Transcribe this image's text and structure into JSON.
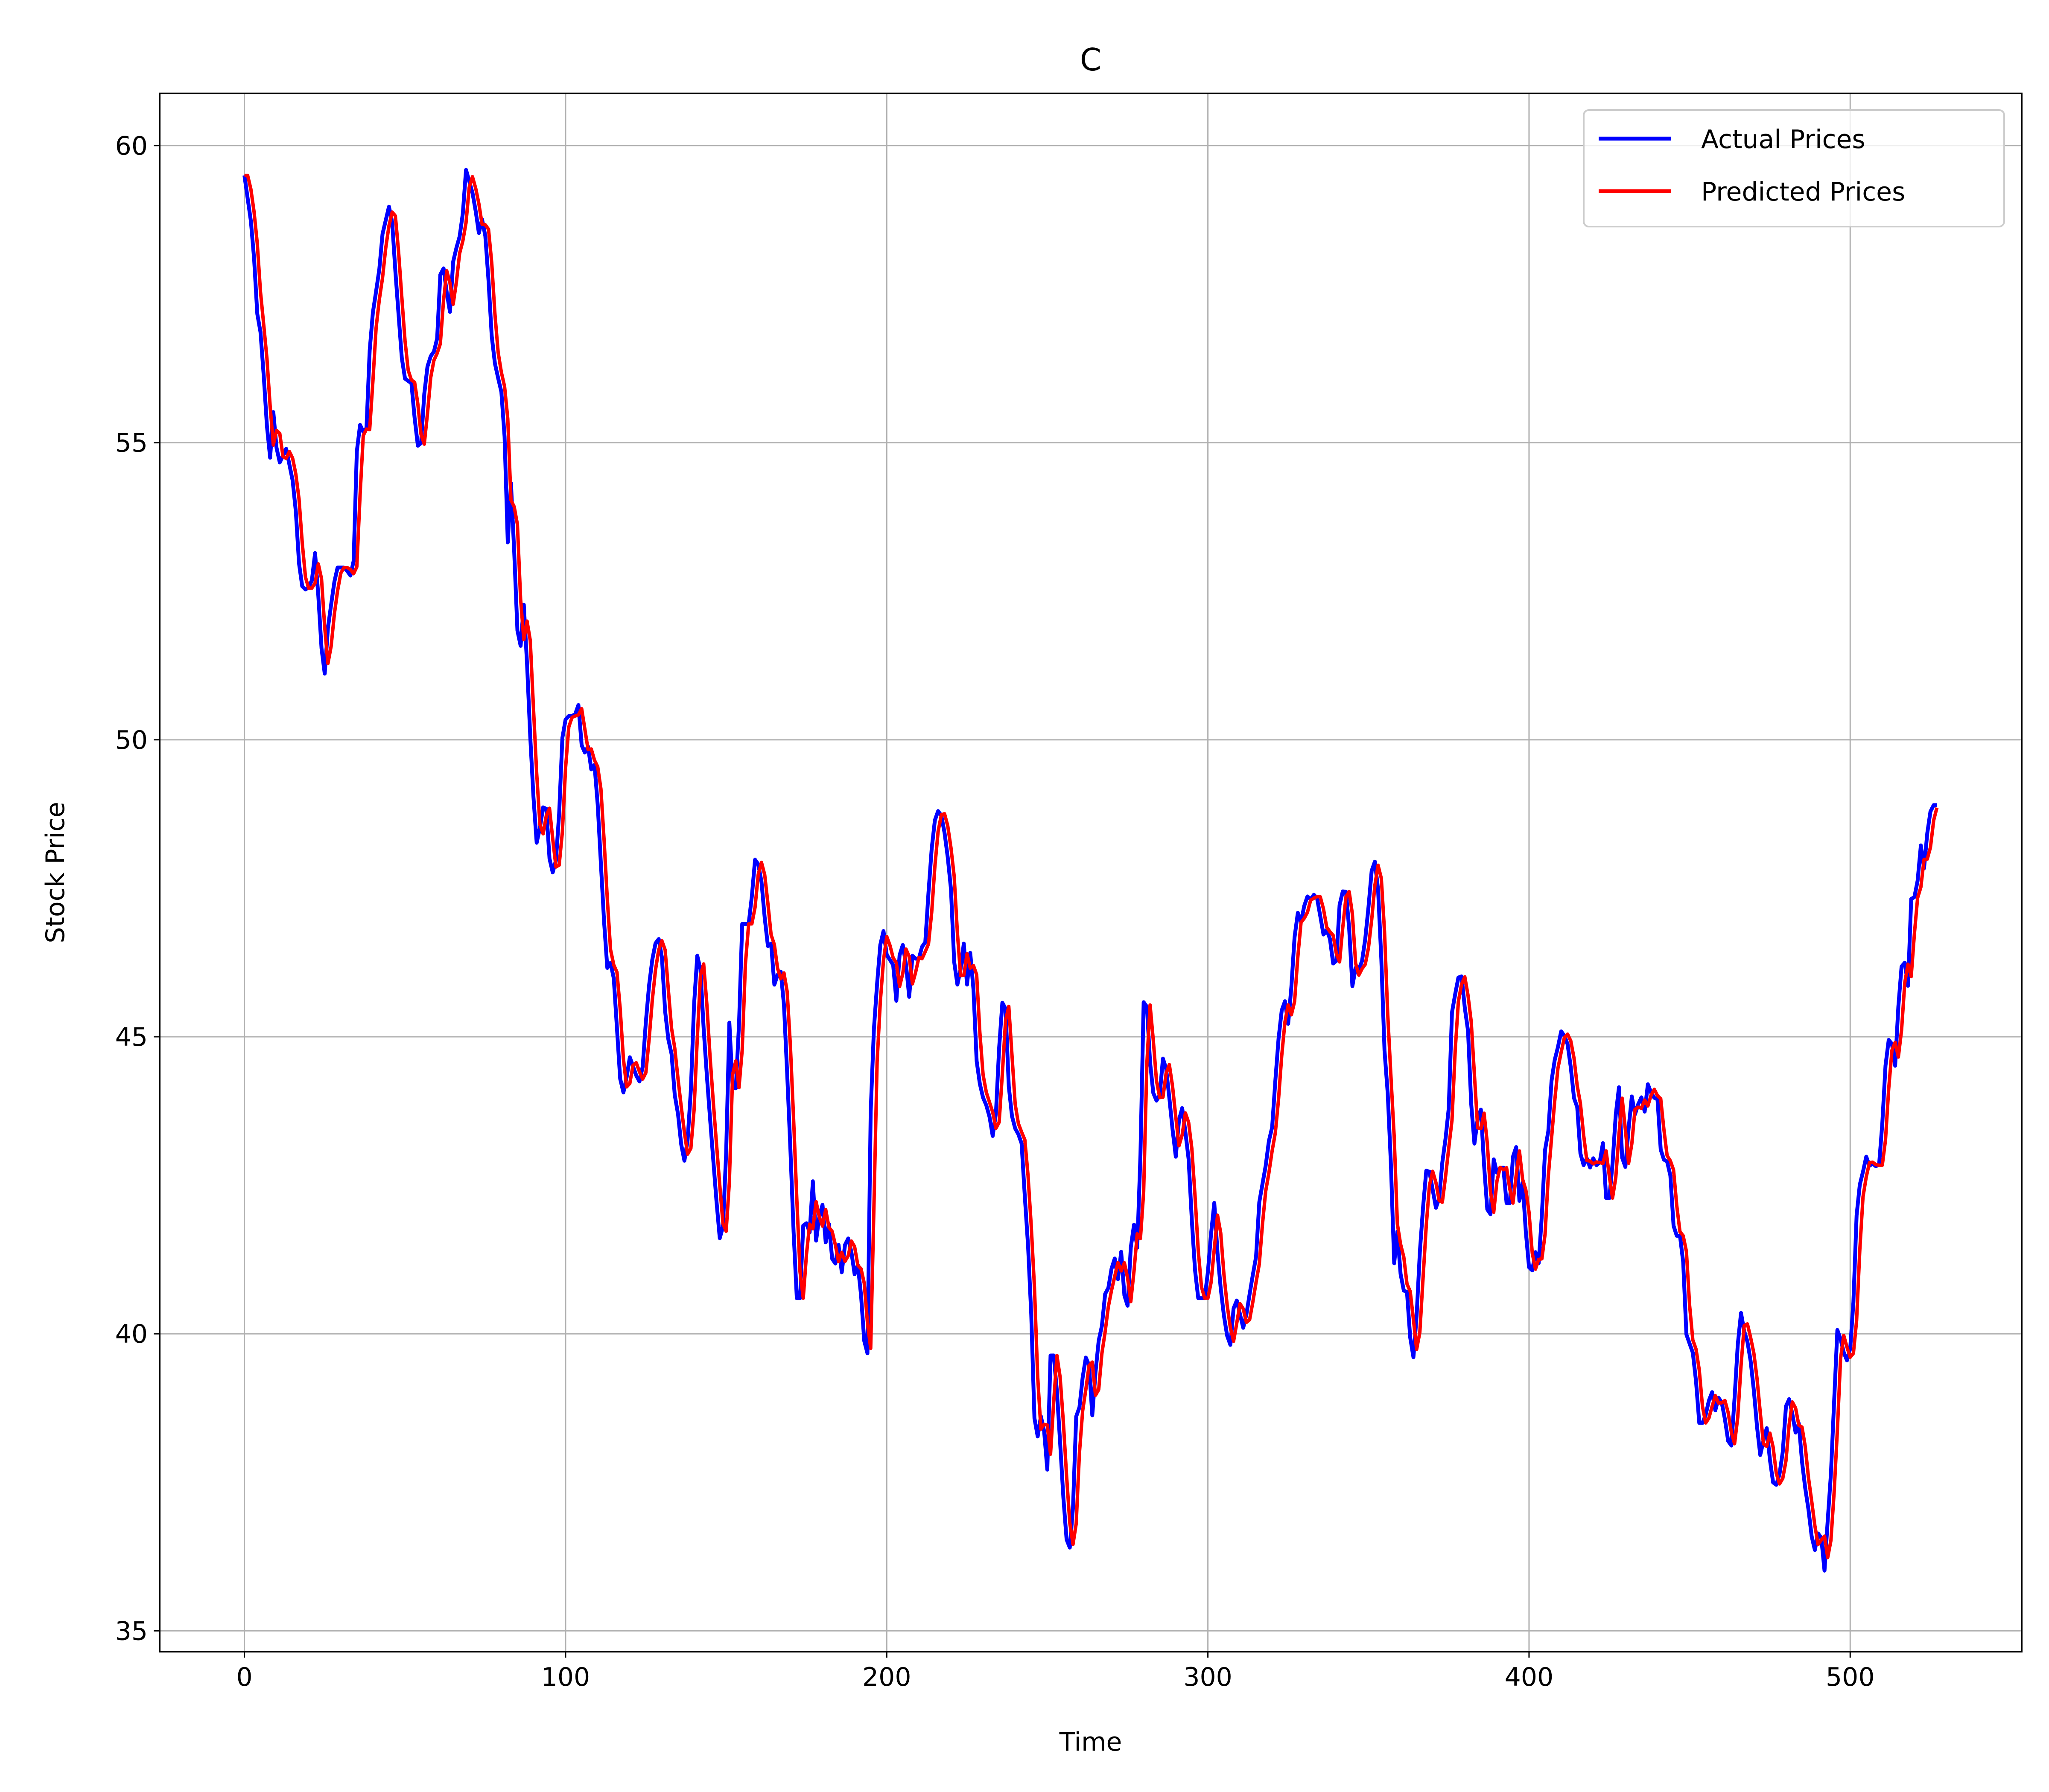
{
  "chart_data": {
    "type": "line",
    "title": "C",
    "xlabel": "Time",
    "ylabel": "Stock Price",
    "xlim": [
      -26.4,
      553.4
    ],
    "ylim": [
      34.65,
      60.88
    ],
    "xticks": [
      0,
      100,
      200,
      300,
      400,
      500
    ],
    "yticks": [
      35,
      40,
      45,
      50,
      55,
      60
    ],
    "grid": true,
    "legend": {
      "placement": "top-right",
      "entries": [
        "Actual Prices",
        "Predicted Prices"
      ]
    },
    "knots": [
      [
        0,
        59.5
      ],
      [
        2,
        58.5
      ],
      [
        3,
        57.2
      ],
      [
        4,
        56.8
      ],
      [
        6,
        54.6
      ],
      [
        7,
        55.6
      ],
      [
        8,
        54.6
      ],
      [
        10,
        54.9
      ],
      [
        12,
        54.2
      ],
      [
        13,
        53.0
      ],
      [
        14,
        52.5
      ],
      [
        16,
        52.6
      ],
      [
        17,
        53.2
      ],
      [
        19,
        50.9
      ],
      [
        20,
        51.9
      ],
      [
        22,
        52.9
      ],
      [
        24,
        52.9
      ],
      [
        26,
        52.7
      ],
      [
        27,
        55.1
      ],
      [
        28,
        55.4
      ],
      [
        29,
        54.9
      ],
      [
        30,
        56.6
      ],
      [
        31,
        57.4
      ],
      [
        32,
        57.7
      ],
      [
        33,
        58.5
      ],
      [
        35,
        59.1
      ],
      [
        36,
        58.0
      ],
      [
        38,
        56.1
      ],
      [
        40,
        56.0
      ],
      [
        41,
        55.2
      ],
      [
        42,
        54.7
      ],
      [
        43,
        55.8
      ],
      [
        44,
        56.4
      ],
      [
        46,
        56.6
      ],
      [
        47,
        58.0
      ],
      [
        48,
        57.9
      ],
      [
        49,
        57.0
      ],
      [
        50,
        58.1
      ],
      [
        52,
        58.6
      ],
      [
        53,
        59.6
      ],
      [
        55,
        59.1
      ],
      [
        56,
        58.5
      ],
      [
        57,
        58.8
      ],
      [
        58,
        58.3
      ],
      [
        59,
        56.9
      ],
      [
        60,
        56.3
      ],
      [
        62,
        55.7
      ],
      [
        63,
        53.3
      ],
      [
        64,
        54.6
      ],
      [
        65,
        52.0
      ],
      [
        66,
        51.5
      ],
      [
        67,
        52.4
      ],
      [
        68,
        50.6
      ],
      [
        69,
        49.2
      ],
      [
        70,
        48.2
      ],
      [
        72,
        49.1
      ],
      [
        73,
        48.0
      ],
      [
        74,
        47.7
      ],
      [
        75,
        48.2
      ],
      [
        76,
        50.0
      ],
      [
        77,
        50.4
      ],
      [
        79,
        50.4
      ],
      [
        80,
        50.6
      ],
      [
        81,
        49.6
      ],
      [
        82,
        50.0
      ],
      [
        83,
        49.5
      ],
      [
        84,
        49.6
      ],
      [
        85,
        48.3
      ],
      [
        86,
        47.0
      ],
      [
        87,
        46.0
      ],
      [
        88,
        46.4
      ],
      [
        89,
        45.3
      ],
      [
        90,
        44.2
      ],
      [
        91,
        44.0
      ],
      [
        92,
        44.7
      ],
      [
        94,
        44.3
      ],
      [
        95,
        44.2
      ],
      [
        96,
        45.2
      ],
      [
        97,
        46.0
      ],
      [
        98,
        46.5
      ],
      [
        99,
        46.7
      ],
      [
        100,
        46.3
      ],
      [
        101,
        45.0
      ],
      [
        102,
        44.9
      ],
      [
        103,
        44.0
      ],
      [
        104,
        43.6
      ],
      [
        105,
        42.8
      ],
      [
        106,
        43.2
      ],
      [
        107,
        44.3
      ],
      [
        108,
        46.4
      ],
      [
        109,
        46.3
      ],
      [
        110,
        45.0
      ],
      [
        111,
        44.0
      ],
      [
        112,
        43.1
      ],
      [
        113,
        42.2
      ],
      [
        114,
        41.4
      ],
      [
        115,
        42.2
      ],
      [
        116,
        45.3
      ],
      [
        117,
        43.9
      ],
      [
        118,
        44.3
      ],
      [
        119,
        46.9
      ],
      [
        121,
        46.9
      ],
      [
        122,
        48.0
      ],
      [
        123,
        47.9
      ],
      [
        124,
        47.5
      ],
      [
        125,
        46.5
      ],
      [
        126,
        46.6
      ],
      [
        127,
        45.7
      ],
      [
        128,
        46.3
      ],
      [
        129,
        45.7
      ],
      [
        130,
        44.2
      ],
      [
        131,
        42.5
      ],
      [
        132,
        40.6
      ],
      [
        133,
        40.6
      ],
      [
        134,
        42.3
      ],
      [
        135,
        41.4
      ],
      [
        136,
        42.6
      ],
      [
        137,
        41.3
      ],
      [
        138,
        42.5
      ],
      [
        139,
        41.5
      ],
      [
        140,
        41.9
      ],
      [
        141,
        40.9
      ],
      [
        142,
        41.6
      ],
      [
        143,
        41.0
      ],
      [
        144,
        41.7
      ],
      [
        145,
        41.5
      ],
      [
        146,
        41.0
      ],
      [
        147,
        41.2
      ],
      [
        149,
        39.2
      ],
      [
        150,
        44.5
      ],
      [
        152,
        46.5
      ],
      [
        153,
        46.8
      ],
      [
        154,
        46.2
      ],
      [
        155,
        46.4
      ],
      [
        156,
        45.6
      ],
      [
        157,
        46.6
      ],
      [
        158,
        46.5
      ],
      [
        159,
        45.6
      ],
      [
        160,
        46.5
      ],
      [
        161,
        46.2
      ],
      [
        162,
        46.5
      ],
      [
        163,
        46.6
      ],
      [
        164,
        47.8
      ],
      [
        165,
        48.6
      ],
      [
        166,
        48.8
      ],
      [
        167,
        48.7
      ],
      [
        168,
        48.2
      ],
      [
        169,
        47.6
      ],
      [
        170,
        46.0
      ],
      [
        171,
        45.8
      ],
      [
        172,
        46.7
      ],
      [
        173,
        45.8
      ],
      [
        174,
        46.7
      ],
      [
        175,
        44.7
      ],
      [
        176,
        44.2
      ],
      [
        177,
        43.9
      ],
      [
        178,
        43.8
      ],
      [
        179,
        43.3
      ],
      [
        180,
        43.8
      ],
      [
        181,
        45.5
      ],
      [
        182,
        45.7
      ],
      [
        183,
        44.0
      ],
      [
        184,
        43.5
      ],
      [
        185,
        43.4
      ],
      [
        186,
        43.2
      ],
      [
        187,
        42.0
      ],
      [
        188,
        41.0
      ],
      [
        189,
        38.6
      ],
      [
        190,
        38.2
      ],
      [
        191,
        38.9
      ],
      [
        192,
        37.4
      ],
      [
        193,
        39.9
      ],
      [
        194,
        39.5
      ],
      [
        195,
        38.4
      ],
      [
        196,
        37.2
      ],
      [
        197,
        36.3
      ],
      [
        198,
        36.5
      ],
      [
        199,
        38.6
      ],
      [
        200,
        38.8
      ],
      [
        201,
        39.6
      ],
      [
        202,
        39.6
      ],
      [
        203,
        38.5
      ],
      [
        204,
        39.8
      ],
      [
        205,
        40.0
      ],
      [
        206,
        40.7
      ],
      [
        207,
        40.8
      ],
      [
        208,
        41.4
      ],
      [
        209,
        40.9
      ],
      [
        210,
        41.5
      ],
      [
        211,
        40.0
      ],
      [
        212,
        41.4
      ],
      [
        213,
        41.9
      ],
      [
        214,
        41.2
      ],
      [
        215,
        45.6
      ],
      [
        216,
        45.5
      ],
      [
        217,
        44.2
      ],
      [
        218,
        43.9
      ],
      [
        219,
        44.0
      ],
      [
        220,
        44.8
      ],
      [
        221,
        44.2
      ],
      [
        222,
        43.5
      ],
      [
        223,
        42.9
      ],
      [
        224,
        44.0
      ],
      [
        225,
        43.5
      ],
      [
        226,
        42.9
      ],
      [
        227,
        41.5
      ],
      [
        228,
        40.6
      ],
      [
        230,
        40.6
      ],
      [
        231,
        41.4
      ],
      [
        232,
        42.3
      ],
      [
        233,
        41.2
      ],
      [
        234,
        40.5
      ],
      [
        235,
        40.0
      ],
      [
        236,
        39.8
      ],
      [
        237,
        40.7
      ],
      [
        239,
        40.1
      ],
      [
        240,
        40.4
      ],
      [
        241,
        40.9
      ],
      [
        242,
        41.2
      ],
      [
        243,
        42.4
      ],
      [
        244,
        42.6
      ],
      [
        245,
        43.2
      ],
      [
        246,
        43.5
      ],
      [
        247,
        44.6
      ],
      [
        248,
        45.4
      ],
      [
        249,
        45.6
      ],
      [
        250,
        45.1
      ],
      [
        251,
        46.5
      ],
      [
        252,
        47.1
      ],
      [
        253,
        46.9
      ],
      [
        254,
        47.4
      ],
      [
        255,
        47.3
      ],
      [
        256,
        47.4
      ],
      [
        257,
        47.3
      ],
      [
        258,
        46.7
      ],
      [
        259,
        46.8
      ],
      [
        260,
        46.6
      ],
      [
        261,
        45.9
      ],
      [
        262,
        47.2
      ],
      [
        263,
        47.5
      ],
      [
        264,
        47.4
      ],
      [
        265,
        45.8
      ],
      [
        266,
        46.2
      ],
      [
        267,
        46.1
      ],
      [
        268,
        46.5
      ],
      [
        269,
        47.2
      ],
      [
        270,
        48.0
      ],
      [
        271,
        47.9
      ],
      [
        272,
        46.4
      ],
      [
        273,
        44.4
      ],
      [
        274,
        43.8
      ],
      [
        275,
        41.1
      ],
      [
        276,
        41.8
      ],
      [
        277,
        40.6
      ],
      [
        278,
        40.9
      ],
      [
        279,
        39.9
      ],
      [
        280,
        39.5
      ],
      [
        281,
        41.1
      ],
      [
        282,
        42.1
      ],
      [
        283,
        42.9
      ],
      [
        284,
        42.6
      ],
      [
        285,
        42.1
      ],
      [
        286,
        42.3
      ],
      [
        287,
        43.2
      ],
      [
        288,
        43.4
      ],
      [
        289,
        45.5
      ],
      [
        290,
        45.8
      ],
      [
        291,
        46.2
      ],
      [
        292,
        45.5
      ],
      [
        293,
        45.0
      ],
      [
        294,
        43.0
      ],
      [
        295,
        43.6
      ],
      [
        296,
        43.8
      ],
      [
        297,
        42.3
      ],
      [
        298,
        41.8
      ],
      [
        299,
        43.0
      ],
      [
        300,
        42.6
      ],
      [
        301,
        43.0
      ],
      [
        302,
        42.2
      ],
      [
        303,
        42.2
      ],
      [
        304,
        43.6
      ],
      [
        305,
        42.2
      ],
      [
        306,
        42.6
      ],
      [
        307,
        41.2
      ],
      [
        308,
        41.0
      ],
      [
        309,
        41.4
      ],
      [
        310,
        41.1
      ],
      [
        311,
        43.0
      ],
      [
        312,
        43.4
      ],
      [
        313,
        44.5
      ],
      [
        314,
        44.7
      ],
      [
        315,
        45.1
      ],
      [
        316,
        45.0
      ],
      [
        317,
        44.8
      ],
      [
        318,
        44.0
      ],
      [
        319,
        43.8
      ],
      [
        320,
        42.7
      ],
      [
        321,
        43.0
      ],
      [
        322,
        42.8
      ],
      [
        323,
        43.0
      ],
      [
        324,
        42.7
      ],
      [
        325,
        43.3
      ],
      [
        326,
        42.1
      ],
      [
        327,
        42.4
      ],
      [
        328,
        43.6
      ],
      [
        329,
        44.2
      ],
      [
        330,
        42.4
      ],
      [
        331,
        43.3
      ],
      [
        332,
        44.0
      ],
      [
        333,
        43.6
      ],
      [
        334,
        44.1
      ],
      [
        335,
        43.7
      ],
      [
        336,
        44.3
      ],
      [
        337,
        43.9
      ],
      [
        338,
        44.1
      ],
      [
        339,
        43.0
      ],
      [
        340,
        42.9
      ],
      [
        341,
        42.9
      ],
      [
        342,
        41.8
      ],
      [
        343,
        41.6
      ],
      [
        344,
        41.7
      ],
      [
        345,
        40.0
      ],
      [
        346,
        39.8
      ],
      [
        347,
        39.6
      ],
      [
        348,
        38.5
      ],
      [
        349,
        38.5
      ],
      [
        350,
        38.7
      ],
      [
        351,
        39.1
      ],
      [
        352,
        38.7
      ],
      [
        353,
        39.0
      ],
      [
        354,
        38.7
      ],
      [
        355,
        38.2
      ],
      [
        356,
        38.1
      ],
      [
        357,
        39.5
      ],
      [
        358,
        40.4
      ],
      [
        359,
        40.0
      ],
      [
        360,
        39.8
      ],
      [
        361,
        39.2
      ],
      [
        362,
        38.4
      ],
      [
        363,
        37.8
      ],
      [
        364,
        38.6
      ],
      [
        365,
        37.9
      ],
      [
        366,
        37.4
      ],
      [
        367,
        37.5
      ],
      [
        368,
        37.9
      ],
      [
        369,
        38.9
      ],
      [
        370,
        38.9
      ],
      [
        371,
        38.3
      ],
      [
        372,
        38.5
      ],
      [
        373,
        37.6
      ],
      [
        374,
        37.2
      ],
      [
        375,
        36.6
      ],
      [
        376,
        36.3
      ],
      [
        377,
        36.9
      ],
      [
        378,
        35.9
      ],
      [
        379,
        37.0
      ],
      [
        380,
        38.0
      ],
      [
        381,
        40.1
      ],
      [
        382,
        39.9
      ],
      [
        383,
        39.6
      ],
      [
        384,
        39.5
      ],
      [
        385,
        40.5
      ],
      [
        386,
        42.4
      ],
      [
        387,
        42.6
      ],
      [
        388,
        43.0
      ],
      [
        389,
        42.8
      ],
      [
        390,
        42.9
      ],
      [
        391,
        42.7
      ],
      [
        392,
        43.6
      ],
      [
        393,
        44.9
      ],
      [
        394,
        45.0
      ],
      [
        395,
        44.5
      ],
      [
        396,
        45.8
      ],
      [
        397,
        46.5
      ],
      [
        398,
        45.7
      ],
      [
        399,
        47.6
      ],
      [
        400,
        47.2
      ],
      [
        401,
        48.3
      ],
      [
        402,
        47.8
      ],
      [
        403,
        48.7
      ],
      [
        404,
        48.9
      ],
      [
        405,
        48.9
      ]
    ],
    "series": [
      {
        "name": "Actual Prices",
        "color": "#0000ff",
        "lag": 0,
        "length": 528
      },
      {
        "name": "Predicted Prices",
        "color": "#ff0000",
        "lag": 1,
        "length": 528
      }
    ]
  }
}
